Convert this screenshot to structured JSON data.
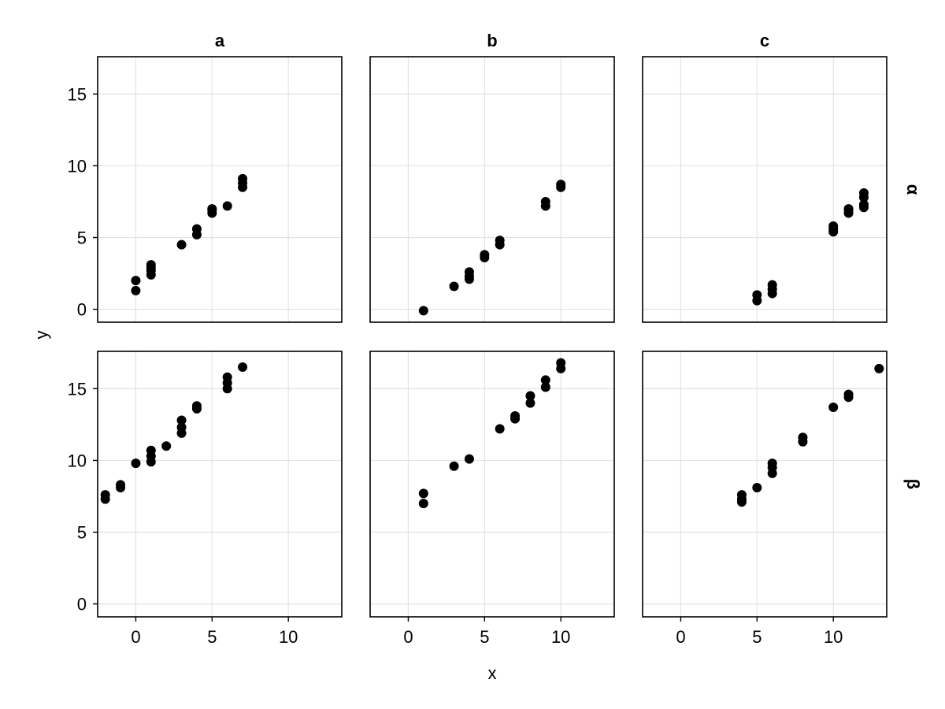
{
  "chart_data": {
    "type": "scatter",
    "layout": "facet-grid",
    "xlabel": "x",
    "ylabel": "y",
    "xlim": [
      -2.5,
      13.5
    ],
    "ylim": [
      -0.9,
      17.6
    ],
    "xticks": [
      0,
      5,
      10
    ],
    "yticks": [
      0,
      5,
      10,
      15
    ],
    "grid": true,
    "marker_color": "#000000",
    "column_labels": [
      "a",
      "b",
      "c"
    ],
    "row_labels": [
      "α",
      "β"
    ],
    "panels": [
      {
        "row": 0,
        "col": 0,
        "x": [
          0,
          0,
          1,
          1,
          1,
          1,
          3,
          4,
          4,
          5,
          5,
          5,
          6,
          7,
          7,
          7
        ],
        "y": [
          2.0,
          1.3,
          2.4,
          2.7,
          2.9,
          3.1,
          4.5,
          5.2,
          5.6,
          6.7,
          6.9,
          7.0,
          7.2,
          8.5,
          8.8,
          9.1
        ]
      },
      {
        "row": 0,
        "col": 1,
        "x": [
          1,
          3,
          4,
          4,
          4,
          5,
          5,
          6,
          6,
          9,
          9,
          10,
          10
        ],
        "y": [
          -0.1,
          1.6,
          2.1,
          2.3,
          2.6,
          3.6,
          3.8,
          4.5,
          4.8,
          7.2,
          7.5,
          8.5,
          8.7
        ]
      },
      {
        "row": 0,
        "col": 2,
        "x": [
          5,
          5,
          6,
          6,
          6,
          10,
          10,
          10,
          11,
          11,
          11,
          12,
          12,
          12,
          12
        ],
        "y": [
          0.6,
          1.0,
          1.1,
          1.4,
          1.7,
          5.4,
          5.6,
          5.8,
          6.7,
          6.9,
          7.0,
          7.1,
          7.3,
          7.8,
          8.1
        ]
      },
      {
        "row": 1,
        "col": 0,
        "x": [
          -2,
          -2,
          -1,
          -1,
          0,
          1,
          1,
          1,
          2,
          3,
          3,
          3,
          4,
          4,
          6,
          6,
          6,
          7
        ],
        "y": [
          7.3,
          7.6,
          8.1,
          8.3,
          9.8,
          9.9,
          10.3,
          10.7,
          11.0,
          11.9,
          12.3,
          12.8,
          13.6,
          13.8,
          15.0,
          15.4,
          15.8,
          16.5
        ]
      },
      {
        "row": 1,
        "col": 1,
        "x": [
          1,
          1,
          3,
          4,
          6,
          7,
          7,
          8,
          8,
          9,
          9,
          10,
          10
        ],
        "y": [
          7.0,
          7.7,
          9.6,
          10.1,
          12.2,
          12.9,
          13.1,
          14.0,
          14.5,
          15.1,
          15.6,
          16.4,
          16.8
        ]
      },
      {
        "row": 1,
        "col": 2,
        "x": [
          4,
          4,
          4,
          5,
          6,
          6,
          6,
          8,
          8,
          10,
          11,
          11,
          13
        ],
        "y": [
          7.1,
          7.3,
          7.6,
          8.1,
          9.1,
          9.5,
          9.8,
          11.3,
          11.6,
          13.7,
          14.4,
          14.6,
          16.4
        ]
      }
    ]
  }
}
